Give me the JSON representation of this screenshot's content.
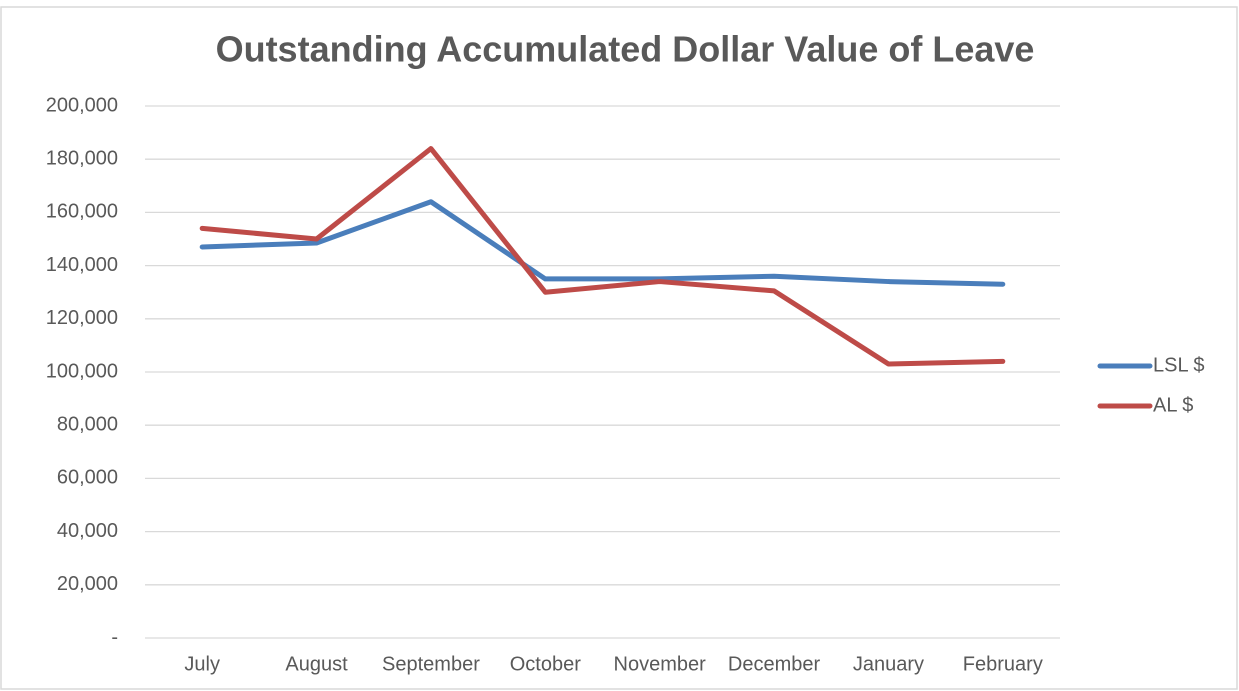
{
  "chart_data": {
    "type": "line",
    "title": "Outstanding Accumulated Dollar Value of Leave",
    "categories": [
      "July",
      "August",
      "September",
      "October",
      "November",
      "December",
      "January",
      "February"
    ],
    "series": [
      {
        "name": "LSL $",
        "color": "#4a7ebb",
        "values": [
          147000,
          148500,
          164000,
          135000,
          135000,
          136000,
          134000,
          133000
        ]
      },
      {
        "name": "AL $",
        "color": "#be4b48",
        "values": [
          154000,
          150000,
          184000,
          130000,
          134000,
          130500,
          103000,
          104000
        ]
      }
    ],
    "ylim": [
      0,
      200000
    ],
    "yticks": [
      {
        "value": 0,
        "label": "-"
      },
      {
        "value": 20000,
        "label": "20,000"
      },
      {
        "value": 40000,
        "label": "40,000"
      },
      {
        "value": 60000,
        "label": "60,000"
      },
      {
        "value": 80000,
        "label": "80,000"
      },
      {
        "value": 100000,
        "label": "100,000"
      },
      {
        "value": 120000,
        "label": "120,000"
      },
      {
        "value": 140000,
        "label": "140,000"
      },
      {
        "value": 160000,
        "label": "160,000"
      },
      {
        "value": 180000,
        "label": "180,000"
      },
      {
        "value": 200000,
        "label": "200,000"
      }
    ],
    "grid": true,
    "legend": "right"
  }
}
